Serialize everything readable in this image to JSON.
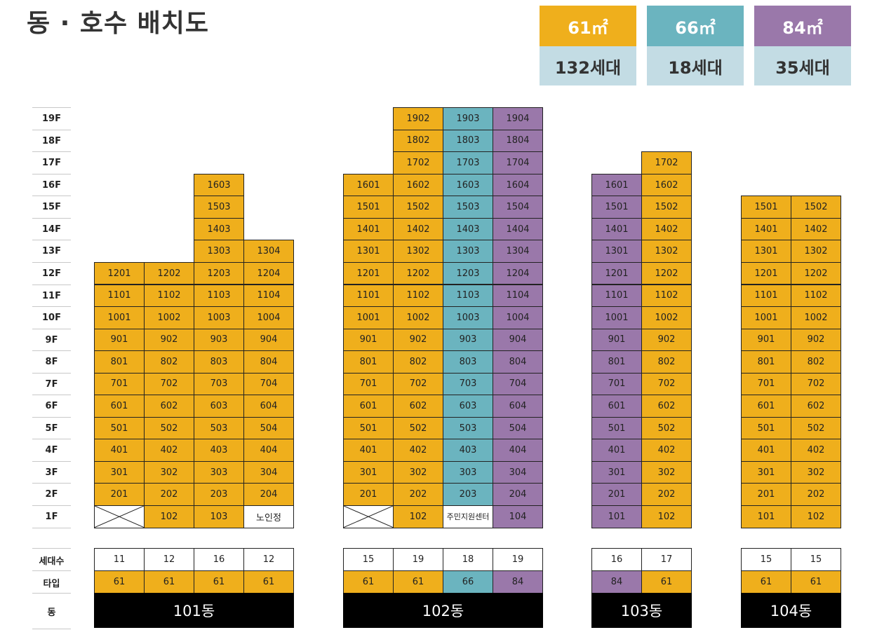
{
  "title": "동 · 호수 배치도",
  "colors": {
    "t61": "#efaf1c",
    "t66": "#6bb4bf",
    "t84": "#9a78aa",
    "count_bg": "#c3dce4",
    "white": "#ffffff"
  },
  "legend": [
    {
      "type": "t61",
      "area": "61㎡",
      "households": "132세대"
    },
    {
      "type": "t66",
      "area": "66㎡",
      "households": "18세대"
    },
    {
      "type": "t84",
      "area": "84㎡",
      "households": "35세대"
    }
  ],
  "floors": [
    "19F",
    "18F",
    "17F",
    "16F",
    "15F",
    "14F",
    "13F",
    "12F",
    "11F",
    "10F",
    "9F",
    "8F",
    "7F",
    "6F",
    "5F",
    "4F",
    "3F",
    "2F",
    "1F"
  ],
  "info_labels": {
    "households": "세대수",
    "type": "타입",
    "building": "동"
  },
  "buildings": [
    {
      "name": "101동",
      "lines": [
        {
          "top": 12,
          "households": "11",
          "type": "61",
          "color": "t61",
          "first_floor": "x"
        },
        {
          "top": 12,
          "households": "12",
          "type": "61",
          "color": "t61",
          "first_floor": "102"
        },
        {
          "top": 16,
          "households": "16",
          "type": "61",
          "color": "t61",
          "first_floor": "103"
        },
        {
          "top": 13,
          "households": "12",
          "type": "61",
          "color": "t61",
          "first_floor": "노인정"
        }
      ]
    },
    {
      "name": "102동",
      "lines": [
        {
          "top": 16,
          "households": "15",
          "type": "61",
          "color": "t61",
          "first_floor": "x"
        },
        {
          "top": 19,
          "households": "19",
          "type": "61",
          "color": "t61",
          "first_floor": "102"
        },
        {
          "top": 19,
          "households": "18",
          "type": "66",
          "color": "t66",
          "first_floor": "주민지원센터"
        },
        {
          "top": 19,
          "households": "19",
          "type": "84",
          "color": "t84",
          "first_floor": "104"
        }
      ]
    },
    {
      "name": "103동",
      "lines": [
        {
          "top": 16,
          "households": "16",
          "type": "84",
          "color": "t84",
          "first_floor": "101"
        },
        {
          "top": 17,
          "households": "17",
          "type": "61",
          "color": "t61",
          "first_floor": "102"
        }
      ]
    },
    {
      "name": "104동",
      "lines": [
        {
          "top": 15,
          "households": "15",
          "type": "61",
          "color": "t61",
          "first_floor": "101"
        },
        {
          "top": 15,
          "households": "15",
          "type": "61",
          "color": "t61",
          "first_floor": "102"
        }
      ]
    }
  ]
}
